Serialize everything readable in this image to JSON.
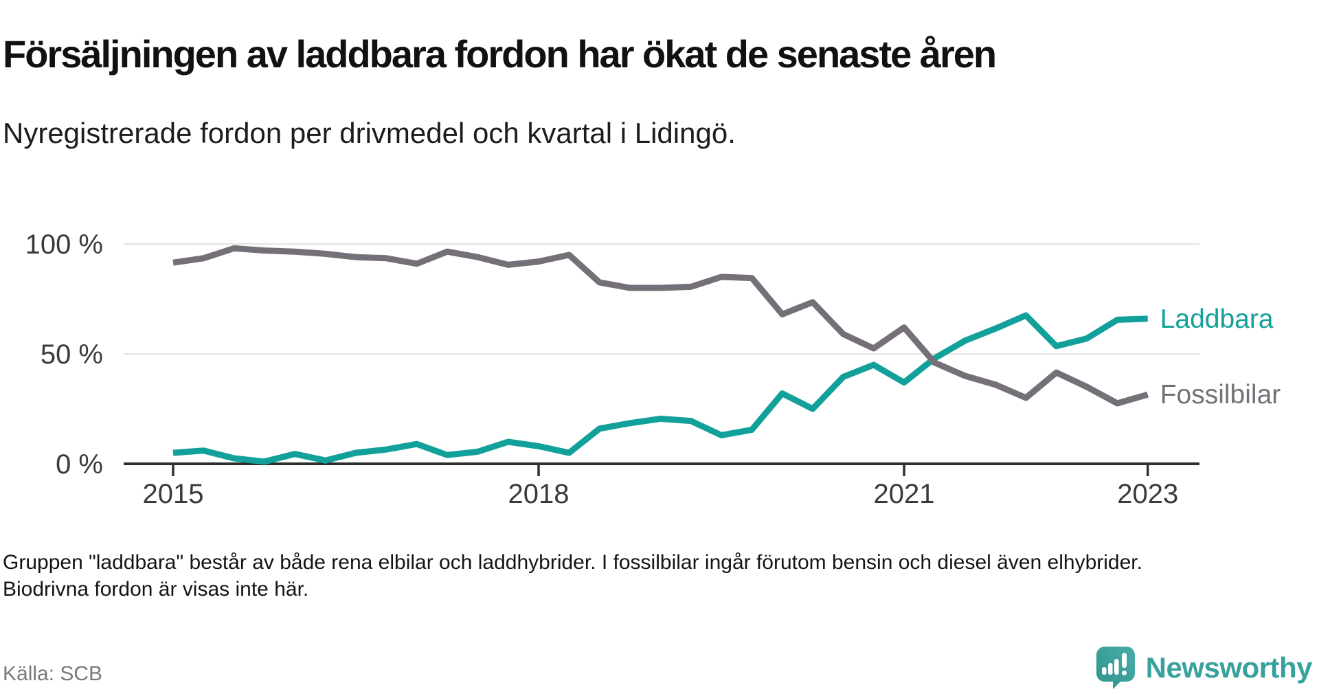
{
  "title": "Försäljningen av laddbara fordon har ökat de senaste åren",
  "subtitle": "Nyregistrerade fordon per drivmedel och kvartal i Lidingö.",
  "footnote": "Gruppen \"laddbara\" består av både rena elbilar och laddhybrider. I fossilbilar ingår förutom bensin och diesel även elhybrider. Biodrivna fordon är visas inte här.",
  "source": "Källa: SCB",
  "logo": {
    "text": "Newsworthy",
    "icon": "newsworthy-speech-bubble-bar-chart",
    "icon_color_top": "#4aaca6",
    "icon_color_bottom": "#2e948e",
    "text_color": "#36a29b"
  },
  "colors": {
    "laddbara": "#12a09a",
    "fossilbilar": "#757078",
    "gridline": "#e3e3e3",
    "axis": "#2f2f2f",
    "axis_label": "#3a3a3a",
    "background": "#ffffff"
  },
  "chart_data": {
    "type": "line",
    "title": "Försäljningen av laddbara fordon har ökat de senaste åren",
    "subtitle": "Nyregistrerade fordon per drivmedel och kvartal i Lidingö.",
    "unit": "percent",
    "x": [
      "2015 Q1",
      "2015 Q2",
      "2015 Q3",
      "2015 Q4",
      "2016 Q1",
      "2016 Q2",
      "2016 Q3",
      "2016 Q4",
      "2017 Q1",
      "2017 Q2",
      "2017 Q3",
      "2017 Q4",
      "2018 Q1",
      "2018 Q2",
      "2018 Q3",
      "2018 Q4",
      "2019 Q1",
      "2019 Q2",
      "2019 Q3",
      "2019 Q4",
      "2020 Q1",
      "2020 Q2",
      "2020 Q3",
      "2020 Q4",
      "2021 Q1",
      "2021 Q2",
      "2021 Q3",
      "2021 Q4",
      "2022 Q1",
      "2022 Q2",
      "2022 Q3",
      "2022 Q4",
      "2023 Q1"
    ],
    "series": [
      {
        "name": "Laddbara",
        "color": "#12a09a",
        "values": [
          5,
          6,
          2.5,
          1,
          4.5,
          1.5,
          5,
          6.5,
          9,
          4,
          5.5,
          10,
          8,
          5,
          16,
          18.5,
          20.5,
          19.5,
          13,
          15.5,
          32,
          25,
          39.5,
          45,
          37,
          48,
          56,
          61.5,
          67.5,
          53.5,
          57,
          65.5,
          66
        ]
      },
      {
        "name": "Fossilbilar",
        "color": "#757078",
        "values": [
          91.5,
          93.5,
          98,
          97,
          96.5,
          95.5,
          94,
          93.5,
          91,
          96.5,
          94,
          90.5,
          92,
          95,
          82.5,
          80,
          80,
          80.5,
          85,
          84.5,
          68,
          73.5,
          59,
          52.5,
          62,
          46,
          40,
          36,
          30,
          41.5,
          35,
          27.5,
          31.5
        ]
      }
    ],
    "ylim": [
      0,
      100
    ],
    "y_ticks": [
      {
        "value": 0,
        "label": "0 %"
      },
      {
        "value": 50,
        "label": "50 %"
      },
      {
        "value": 100,
        "label": "100 %"
      }
    ],
    "x_ticks": [
      {
        "index": 0,
        "label": "2015"
      },
      {
        "index": 12,
        "label": "2018"
      },
      {
        "index": 24,
        "label": "2021"
      },
      {
        "index": 32,
        "label": "2023"
      }
    ],
    "grid": true,
    "legend_position": "right-of-line-end"
  }
}
